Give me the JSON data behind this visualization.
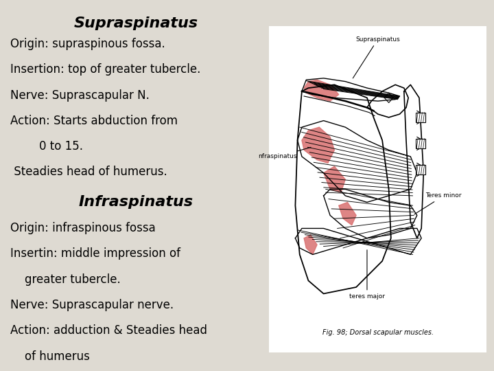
{
  "bg_color": "#dedad2",
  "right_panel_bg": "#ffffff",
  "title1": "Supraspinatus",
  "lines1": [
    "Origin: supraspinous fossa.",
    "Insertion: top of greater tubercle.",
    "Nerve: Suprascapular N.",
    "Action: Starts abduction from",
    "        0 to 15.",
    " Steadies head of humerus."
  ],
  "title2": "Infraspinatus",
  "lines2": [
    "Origin: infraspinous fossa",
    "Insertin: middle impression of",
    "    greater tubercle.",
    "Nerve: Suprascapular nerve.",
    "Action: adduction & Steadies head",
    "    of humerus"
  ],
  "fig_caption": "Fig. 98; Dorsal scapular muscles.",
  "label_supraspinatus": "Supraspinatus",
  "label_infraspinatus": "nfraspinatus",
  "label_teres_minor": "Teres minor",
  "label_teres_major": "teres major"
}
